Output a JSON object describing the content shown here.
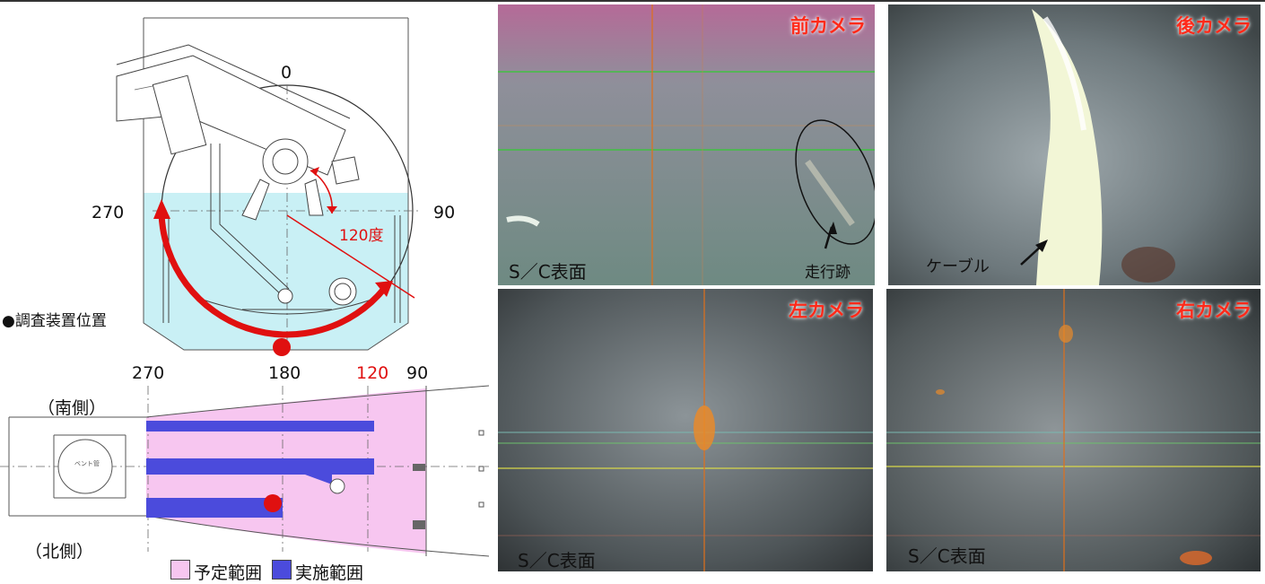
{
  "left_panel": {
    "top_diagram": {
      "angle_0": "0",
      "angle_270": "270",
      "angle_90": "90",
      "angle_annotation": "120度",
      "device_position_label": "●調査装置位置"
    },
    "bottom_diagram": {
      "angle_270": "270",
      "angle_180": "180",
      "angle_120": "120",
      "angle_90": "90",
      "south_label": "（南側）",
      "north_label": "（北側）",
      "pipe_tag": "ベント管"
    },
    "legend": {
      "planned_label": "予定範囲",
      "planned_color": "#f7c6f0",
      "done_label": "実施範囲",
      "done_color": "#4b4bdc"
    }
  },
  "cameras": {
    "front": {
      "title": "前カメラ",
      "surface_label": "S／C表面",
      "track_label": "走行跡"
    },
    "rear": {
      "title": "後カメラ",
      "cable_label": "ケーブル"
    },
    "left": {
      "title": "左カメラ",
      "surface_label": "S／C表面"
    },
    "right": {
      "title": "右カメラ",
      "surface_label": "S／C表面"
    }
  }
}
